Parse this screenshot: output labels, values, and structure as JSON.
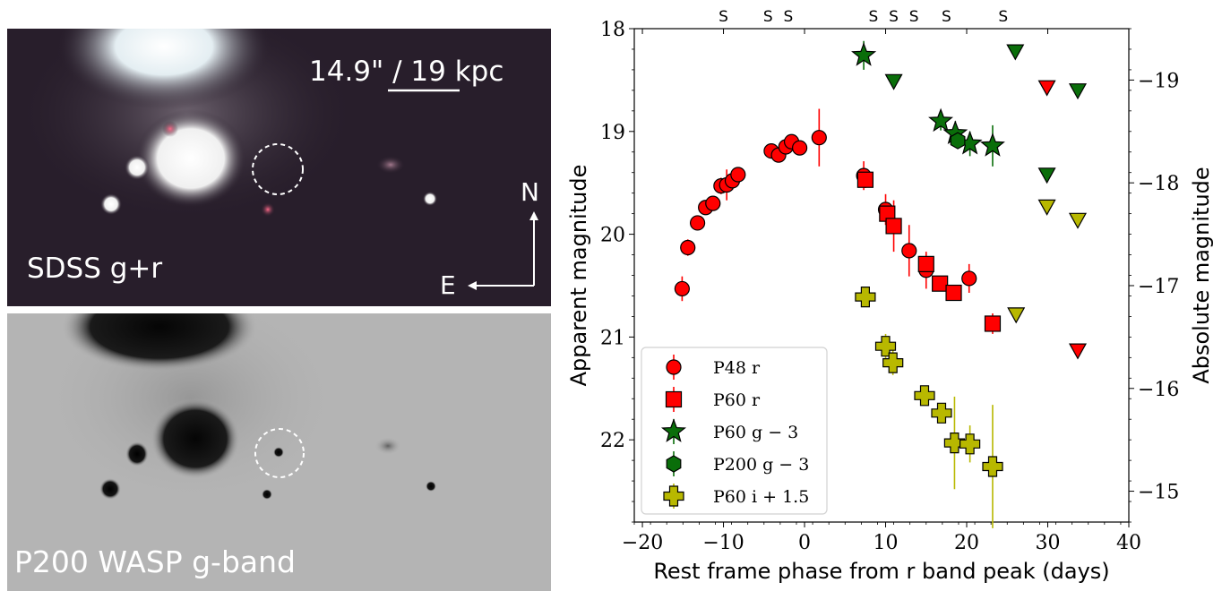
{
  "images": {
    "top": {
      "label": "SDSS g+r",
      "scale_label": "14.9\" / 19 kpc",
      "north": "N",
      "east": "E"
    },
    "bottom": {
      "label": "P200 WASP g-band"
    }
  },
  "chart_data": {
    "type": "scatter",
    "xlabel": "Rest frame phase from r band peak (days)",
    "ylabel": "Apparent magnitude",
    "y2label": "Absolute magnitude",
    "xlim": [
      -21,
      40
    ],
    "ylim": [
      22.8,
      18
    ],
    "y2lim": [
      -14.7,
      -19.5
    ],
    "xticks": [
      -20,
      -10,
      0,
      10,
      20,
      30,
      40
    ],
    "yticks": [
      18,
      19,
      20,
      21,
      22
    ],
    "y2ticks": [
      -19,
      -18,
      -17,
      -16,
      -15
    ],
    "spectra_marker": "S",
    "spectra_epochs": [
      -10,
      -4.5,
      -2,
      8.5,
      11,
      13.5,
      17.5,
      24.5
    ],
    "legend_position": "lower-left",
    "series": [
      {
        "name": "P48 r",
        "marker": "circle",
        "color": "#ff0000",
        "points": [
          [
            -15.1,
            20.53,
            0.12
          ],
          [
            -14.4,
            20.13,
            0.08
          ],
          [
            -13.2,
            19.89,
            0.07
          ],
          [
            -12.2,
            19.74,
            0.06
          ],
          [
            -11.3,
            19.7,
            0.06
          ],
          [
            -10.3,
            19.53,
            0.08
          ],
          [
            -9.6,
            19.52,
            0.15
          ],
          [
            -8.9,
            19.48,
            0.09
          ],
          [
            -8.2,
            19.42,
            0.07
          ],
          [
            -4.1,
            19.19,
            0.06
          ],
          [
            -3.2,
            19.23,
            0.06
          ],
          [
            -2.3,
            19.15,
            0.07
          ],
          [
            -1.6,
            19.1,
            0.05
          ],
          [
            -0.6,
            19.16,
            0.06
          ],
          [
            1.8,
            19.06,
            0.28
          ],
          [
            7.3,
            19.43,
            0.14
          ],
          [
            10.0,
            19.76,
            0.15
          ],
          [
            12.9,
            20.16,
            0.25
          ],
          [
            15.0,
            20.35,
            0.18
          ],
          [
            20.3,
            20.43,
            0.14
          ]
        ]
      },
      {
        "name": "P60 r",
        "marker": "square",
        "color": "#ff0000",
        "points": [
          [
            7.5,
            19.47,
            0.08
          ],
          [
            10.2,
            19.8,
            0.1
          ],
          [
            11.0,
            19.92,
            0.25
          ],
          [
            15.0,
            20.29,
            0.1
          ],
          [
            16.7,
            20.48,
            0.07
          ],
          [
            18.4,
            20.57,
            0.06
          ],
          [
            23.2,
            20.87,
            0.1
          ]
        ]
      },
      {
        "name": "P60 g − 3",
        "marker": "star",
        "color": "#0a6e0a",
        "points": [
          [
            7.3,
            18.26,
            0.14
          ],
          [
            16.8,
            18.9,
            0.09
          ],
          [
            18.6,
            19.02,
            0.12
          ],
          [
            20.4,
            19.12,
            0.12
          ],
          [
            23.2,
            19.14,
            0.2
          ]
        ]
      },
      {
        "name": "P200 g − 3",
        "marker": "hexagon",
        "color": "#0a6e0a",
        "points": [
          [
            18.9,
            19.09,
            0.05
          ]
        ]
      },
      {
        "name": "P60 i + 1.5",
        "marker": "plus",
        "color": "#b8b800",
        "points": [
          [
            7.5,
            20.61,
            0.08
          ],
          [
            10.0,
            21.09,
            0.12
          ],
          [
            10.9,
            21.25,
            0.12
          ],
          [
            14.8,
            21.57,
            0.08
          ],
          [
            16.9,
            21.74,
            0.09
          ],
          [
            18.5,
            22.03,
            0.45
          ],
          [
            20.4,
            22.04,
            0.18
          ],
          [
            23.2,
            22.26,
            0.6
          ]
        ]
      }
    ],
    "upper_limits": [
      {
        "color": "#0a6e0a",
        "points": [
          [
            26.0,
            18.22
          ],
          [
            11.0,
            18.51
          ],
          [
            29.9,
            19.42
          ],
          [
            33.7,
            18.6
          ]
        ]
      },
      {
        "color": "#ff0000",
        "points": [
          [
            29.9,
            18.57
          ],
          [
            33.7,
            21.13
          ]
        ]
      },
      {
        "color": "#b8b800",
        "points": [
          [
            26.1,
            20.78
          ],
          [
            29.9,
            19.73
          ],
          [
            33.7,
            19.86
          ]
        ]
      }
    ]
  }
}
